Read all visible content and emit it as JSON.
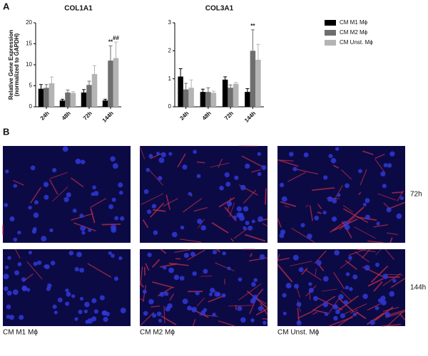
{
  "panel_labels": [
    "A",
    "B"
  ],
  "chart_data": [
    {
      "type": "bar",
      "title": "COL1A1",
      "ylabel": [
        "Relative Gene Expression",
        "(normalized to GAPDH)"
      ],
      "categories": [
        "24h",
        "48h",
        "72h",
        "144h"
      ],
      "ylim": [
        0,
        20
      ],
      "yticks": [
        0,
        5,
        10,
        15,
        20
      ],
      "series": [
        {
          "name": "CM M1 Mϕ",
          "color": "#000000",
          "values": [
            4.3,
            1.5,
            3.4,
            1.5
          ],
          "errors": [
            1.0,
            0.3,
            0.7,
            0.3
          ],
          "annotations": [
            null,
            null,
            null,
            null
          ]
        },
        {
          "name": "CM M2 Mϕ",
          "color": "#6e6e6e",
          "values": [
            4.5,
            3.4,
            5.2,
            11
          ],
          "errors": [
            0.8,
            0.6,
            0.9,
            3.5
          ],
          "annotations": [
            null,
            null,
            null,
            "**"
          ]
        },
        {
          "name": "CM Unst. Mϕ",
          "color": "#b4b4b4",
          "values": [
            5.6,
            3.3,
            7.8,
            11.6
          ],
          "errors": [
            1.5,
            0.3,
            2.0,
            3.8
          ],
          "annotations": [
            null,
            null,
            null,
            "##"
          ]
        }
      ]
    },
    {
      "type": "bar",
      "title": "COL3A1",
      "categories": [
        "24h",
        "48h",
        "72h",
        "144h"
      ],
      "ylim": [
        0,
        3
      ],
      "yticks": [
        0,
        1,
        2,
        3
      ],
      "series": [
        {
          "color": "#000000",
          "values": [
            1.08,
            0.53,
            0.97,
            0.53
          ],
          "errors": [
            0.28,
            0.1,
            0.1,
            0.12
          ],
          "annotations": [
            null,
            null,
            null,
            null
          ]
        },
        {
          "color": "#6e6e6e",
          "values": [
            0.62,
            0.53,
            0.68,
            2.0
          ],
          "errors": [
            0.22,
            0.15,
            0.1,
            0.75
          ],
          "annotations": [
            null,
            null,
            null,
            "**"
          ]
        },
        {
          "color": "#b4b4b4",
          "values": [
            0.68,
            0.5,
            0.82,
            1.68
          ],
          "errors": [
            0.28,
            0.06,
            0.05,
            0.55
          ],
          "annotations": [
            null,
            null,
            null,
            null
          ]
        }
      ]
    }
  ],
  "images": {
    "rows": [
      "72h",
      "144h"
    ],
    "columns": [
      "CM M1 Mϕ",
      "CM M2 Mϕ",
      "CM Unst. Mϕ"
    ]
  }
}
